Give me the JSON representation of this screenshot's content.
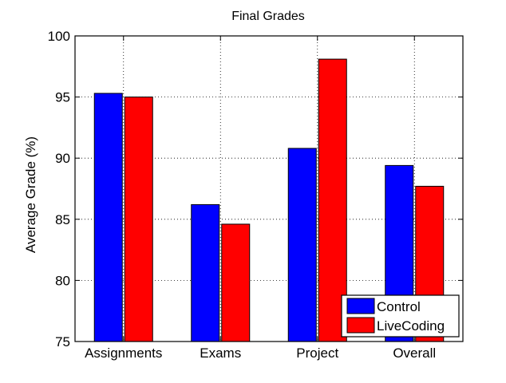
{
  "chart_data": {
    "type": "bar",
    "title": "Final Grades",
    "xlabel": "",
    "ylabel": "Average Grade (%)",
    "categories": [
      "Assignments",
      "Exams",
      "Project",
      "Overall"
    ],
    "series": [
      {
        "name": "Control",
        "color": "#0000ff",
        "values": [
          95.3,
          86.2,
          90.8,
          89.4
        ]
      },
      {
        "name": "LiveCoding",
        "color": "#ff0000",
        "values": [
          95.0,
          84.6,
          98.1,
          87.7
        ]
      }
    ],
    "ylim": [
      75,
      100
    ],
    "yticks": [
      75,
      80,
      85,
      90,
      95,
      100
    ],
    "grid": true,
    "legend_position": "bottom-right"
  }
}
